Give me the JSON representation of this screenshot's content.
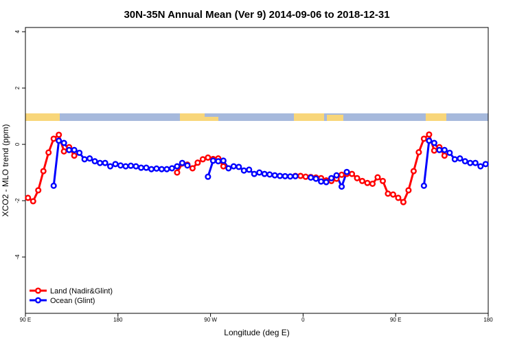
{
  "chart_data": {
    "type": "line",
    "title": "30N-35N Annual Mean (Ver 9)   2014-09-06 to 2018-12-31",
    "x_label": "Longitude (deg E)",
    "y_label": "XCO2 - MLO trend (ppm)",
    "xlim": [
      90,
      540
    ],
    "xticks": [
      {
        "value": 90,
        "label": "90 E"
      },
      180,
      {
        "value": 270,
        "label": "90 W"
      },
      {
        "value": 360,
        "label": "0"
      },
      {
        "value": 450,
        "label": "90 E"
      },
      {
        "value": 540,
        "label": "180"
      }
    ],
    "ylim": [
      -6,
      4.15
    ],
    "yticks": [
      -4,
      -2,
      0,
      2,
      4
    ],
    "legend": "bottomleft",
    "x": [
      92.5,
      97.5,
      102.5,
      107.5,
      112.5,
      117.5,
      122.5,
      127.5,
      132.5,
      137.5,
      142.5,
      147.5,
      152.5,
      157.5,
      162.5,
      167.5,
      172.5,
      177.5,
      182.5,
      187.5,
      192.5,
      197.5,
      202.5,
      207.5,
      212.5,
      217.5,
      222.5,
      227.5,
      232.5,
      237.5,
      242.5,
      247.5,
      252.5,
      257.5,
      262.5,
      267.5,
      272.5,
      277.5,
      282.5,
      287.5,
      292.5,
      297.5,
      302.5,
      307.5,
      312.5,
      317.5,
      322.5,
      327.5,
      332.5,
      337.5,
      342.5,
      347.5,
      352.5,
      357.5,
      362.5,
      367.5,
      372.5,
      377.5,
      382.5,
      387.5,
      392.5,
      397.5,
      402.5,
      407.5,
      412.5,
      417.5,
      422.5,
      427.5,
      432.5,
      437.5,
      442.5,
      447.5,
      452.5,
      457.5,
      462.5,
      467.5,
      472.5,
      477.5,
      482.5,
      487.5,
      492.5,
      497.5,
      502.5,
      507.5,
      512.5,
      517.5,
      522.5,
      527.5,
      532.5,
      537.5
    ],
    "series": [
      {
        "name": "Land (Nadir&Glint)",
        "color": "#ff0000",
        "values": [
          -1.9,
          -2.02,
          -1.63,
          -0.95,
          -0.29,
          0.2,
          0.34,
          -0.25,
          -0.1,
          -0.4,
          null,
          null,
          null,
          null,
          null,
          null,
          null,
          null,
          null,
          null,
          null,
          null,
          null,
          null,
          null,
          null,
          null,
          null,
          null,
          -1.0,
          -0.68,
          -0.72,
          -0.85,
          -0.65,
          -0.53,
          -0.47,
          -0.52,
          -0.5,
          -0.78,
          null,
          null,
          null,
          null,
          null,
          null,
          null,
          null,
          null,
          null,
          null,
          null,
          null,
          -1.12,
          -1.12,
          -1.15,
          -1.16,
          -1.18,
          -1.2,
          -1.28,
          -1.3,
          -1.22,
          -1.08,
          -1.05,
          -1.05,
          -1.2,
          -1.3,
          -1.37,
          -1.4,
          -1.17,
          -1.3,
          -1.75,
          -1.78,
          -1.9,
          -2.05,
          -1.63,
          -0.95,
          -0.28,
          0.2,
          0.35,
          -0.22,
          -0.1,
          -0.4,
          null,
          null,
          null,
          null,
          null,
          null,
          null,
          null
        ]
      },
      {
        "name": "Ocean (Glint)",
        "color": "#0000ff",
        "values": [
          null,
          null,
          null,
          null,
          null,
          -1.47,
          0.13,
          0.05,
          -0.2,
          -0.2,
          -0.3,
          -0.53,
          -0.5,
          -0.6,
          -0.66,
          -0.66,
          -0.78,
          -0.7,
          -0.75,
          -0.78,
          -0.76,
          -0.78,
          -0.83,
          -0.83,
          -0.88,
          -0.86,
          -0.88,
          -0.88,
          -0.85,
          -0.78,
          -0.66,
          -0.75,
          null,
          null,
          null,
          -1.15,
          -0.58,
          -0.6,
          -0.58,
          -0.85,
          -0.78,
          -0.8,
          -0.93,
          -0.9,
          -1.05,
          -1.0,
          -1.05,
          -1.07,
          -1.1,
          -1.12,
          -1.13,
          -1.14,
          -1.13,
          null,
          null,
          -1.18,
          -1.22,
          -1.32,
          -1.34,
          -1.2,
          -1.1,
          -1.5,
          -0.98,
          null,
          null,
          null,
          null,
          null,
          null,
          null,
          null,
          null,
          null,
          null,
          null,
          null,
          null,
          -1.47,
          0.13,
          0.05,
          -0.2,
          -0.2,
          -0.3,
          -0.53,
          -0.5,
          -0.6,
          -0.66,
          -0.66,
          -0.78,
          -0.7
        ]
      }
    ]
  }
}
